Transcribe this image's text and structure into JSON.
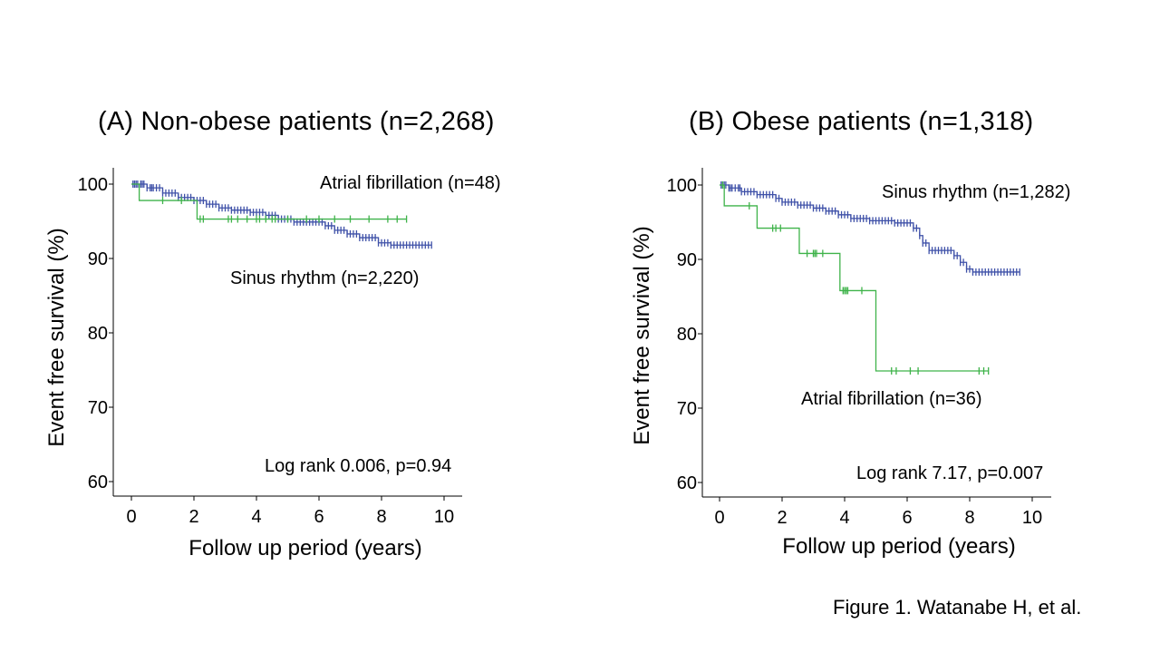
{
  "figure": {
    "caption": "Figure 1. Watanabe H, et al."
  },
  "colors": {
    "sinus_rhythm": "#3f51a8",
    "atrial_fibrillation": "#3fb34a",
    "axis": "#000000"
  },
  "chart_data": [
    {
      "type": "line",
      "title": "(A) Non-obese patients (n=2,268)",
      "xlabel": "Follow up period (years)",
      "ylabel": "Event free survival (%)",
      "xlim": [
        0,
        10
      ],
      "ylim": [
        60,
        100
      ],
      "xticks": [
        0,
        2,
        4,
        6,
        8,
        10
      ],
      "yticks": [
        60,
        70,
        80,
        90,
        100
      ],
      "annotation": "Log rank 0.006, p=0.94",
      "series": [
        {
          "name": "Sinus rhythm (n=2,220)",
          "color": "#3f51a8",
          "steps": [
            [
              0,
              100
            ],
            [
              0.5,
              99.5
            ],
            [
              1.0,
              98.8
            ],
            [
              1.5,
              98.2
            ],
            [
              2.0,
              97.8
            ],
            [
              2.4,
              97.3
            ],
            [
              2.8,
              96.8
            ],
            [
              3.2,
              96.5
            ],
            [
              3.8,
              96.2
            ],
            [
              4.3,
              95.8
            ],
            [
              4.7,
              95.3
            ],
            [
              5.2,
              94.9
            ],
            [
              6.2,
              94.4
            ],
            [
              6.5,
              93.8
            ],
            [
              6.9,
              93.3
            ],
            [
              7.3,
              92.8
            ],
            [
              7.9,
              92.1
            ],
            [
              8.3,
              91.8
            ],
            [
              9.6,
              91.8
            ]
          ],
          "censor_x": [
            0.05,
            0.1,
            0.15,
            0.2,
            0.3,
            0.35,
            0.4,
            0.5,
            0.6,
            0.65,
            0.7,
            0.8,
            0.9,
            1.0,
            1.1,
            1.2,
            1.3,
            1.4,
            1.5,
            1.6,
            1.7,
            1.8,
            1.9,
            2.0,
            2.1,
            2.2,
            2.3,
            2.4,
            2.5,
            2.6,
            2.7,
            2.8,
            2.9,
            3.0,
            3.1,
            3.2,
            3.3,
            3.4,
            3.5,
            3.6,
            3.7,
            3.8,
            3.9,
            4.0,
            4.1,
            4.2,
            4.3,
            4.4,
            4.5,
            4.6,
            4.7,
            4.8,
            4.9,
            5.0,
            5.1,
            5.2,
            5.3,
            5.4,
            5.5,
            5.6,
            5.7,
            5.8,
            5.9,
            6.0,
            6.1,
            6.2,
            6.3,
            6.4,
            6.5,
            6.6,
            6.7,
            6.8,
            6.9,
            7.0,
            7.1,
            7.2,
            7.3,
            7.4,
            7.5,
            7.6,
            7.7,
            7.8,
            7.9,
            8.0,
            8.1,
            8.2,
            8.3,
            8.4,
            8.5,
            8.6,
            8.7,
            8.8,
            8.9,
            9.0,
            9.1,
            9.2,
            9.3,
            9.4,
            9.5,
            9.6
          ]
        },
        {
          "name": "Atrial fibrillation (n=48)",
          "color": "#3fb34a",
          "steps": [
            [
              0,
              100
            ],
            [
              0.25,
              97.8
            ],
            [
              2.1,
              95.3
            ],
            [
              8.8,
              95.3
            ]
          ],
          "censor_x": [
            1.0,
            1.6,
            2.2,
            2.3,
            3.1,
            3.2,
            3.4,
            3.7,
            4.0,
            4.1,
            4.3,
            4.5,
            4.6,
            5.0,
            5.6,
            6.0,
            6.5,
            7.0,
            7.6,
            8.2,
            8.5,
            8.8
          ]
        }
      ],
      "series_labels": [
        {
          "text": "Atrial fibrillation (n=48)"
        },
        {
          "text": "Sinus rhythm (n=2,220)"
        }
      ]
    },
    {
      "type": "line",
      "title": "(B) Obese patients (n=1,318)",
      "xlabel": "Follow up period (years)",
      "ylabel": "Event free survival (%)",
      "xlim": [
        0,
        10
      ],
      "ylim": [
        60,
        100
      ],
      "xticks": [
        0,
        2,
        4,
        6,
        8,
        10
      ],
      "yticks": [
        60,
        70,
        80,
        90,
        100
      ],
      "annotation": "Log rank 7.17, p=0.007",
      "series": [
        {
          "name": "Sinus rhythm (n=1,282)",
          "color": "#3f51a8",
          "steps": [
            [
              0,
              100
            ],
            [
              0.3,
              99.6
            ],
            [
              0.7,
              99.1
            ],
            [
              1.2,
              98.7
            ],
            [
              1.8,
              98.2
            ],
            [
              2.0,
              97.7
            ],
            [
              2.5,
              97.3
            ],
            [
              3.0,
              96.9
            ],
            [
              3.4,
              96.5
            ],
            [
              3.8,
              96.0
            ],
            [
              4.2,
              95.5
            ],
            [
              4.8,
              95.2
            ],
            [
              5.6,
              94.9
            ],
            [
              6.2,
              94.2
            ],
            [
              6.4,
              93.2
            ],
            [
              6.5,
              92.2
            ],
            [
              6.7,
              91.2
            ],
            [
              7.5,
              90.5
            ],
            [
              7.7,
              89.6
            ],
            [
              7.9,
              88.7
            ],
            [
              8.1,
              88.3
            ],
            [
              9.6,
              88.3
            ]
          ],
          "censor_x": [
            0.05,
            0.1,
            0.15,
            0.2,
            0.3,
            0.35,
            0.4,
            0.5,
            0.6,
            0.65,
            0.7,
            0.8,
            0.9,
            1.0,
            1.1,
            1.2,
            1.3,
            1.4,
            1.5,
            1.6,
            1.7,
            1.8,
            1.9,
            2.0,
            2.1,
            2.2,
            2.3,
            2.4,
            2.5,
            2.6,
            2.7,
            2.8,
            2.9,
            3.0,
            3.1,
            3.2,
            3.3,
            3.4,
            3.5,
            3.6,
            3.7,
            3.8,
            3.9,
            4.0,
            4.1,
            4.2,
            4.3,
            4.4,
            4.5,
            4.6,
            4.7,
            4.8,
            4.9,
            5.0,
            5.1,
            5.2,
            5.3,
            5.4,
            5.5,
            5.6,
            5.7,
            5.8,
            5.9,
            6.0,
            6.1,
            6.2,
            6.3,
            6.4,
            6.5,
            6.6,
            6.7,
            6.8,
            6.9,
            7.0,
            7.1,
            7.2,
            7.3,
            7.4,
            7.5,
            7.6,
            7.7,
            7.8,
            7.9,
            8.0,
            8.1,
            8.2,
            8.3,
            8.4,
            8.5,
            8.6,
            8.7,
            8.8,
            8.9,
            9.0,
            9.1,
            9.2,
            9.3,
            9.4,
            9.5,
            9.6
          ]
        },
        {
          "name": "Atrial fibrillation (n=36)",
          "color": "#3fb34a",
          "steps": [
            [
              0,
              100
            ],
            [
              0.15,
              97.2
            ],
            [
              1.2,
              94.2
            ],
            [
              2.55,
              90.8
            ],
            [
              3.85,
              85.8
            ],
            [
              5.0,
              75.0
            ],
            [
              8.6,
              75.0
            ]
          ],
          "censor_x": [
            0.1,
            0.95,
            1.7,
            1.8,
            1.95,
            2.8,
            3.0,
            3.05,
            3.1,
            3.3,
            3.95,
            4.0,
            4.05,
            4.1,
            4.55,
            5.5,
            5.65,
            6.1,
            6.35,
            8.3,
            8.45,
            8.6
          ]
        }
      ],
      "series_labels": [
        {
          "text": "Sinus rhythm (n=1,282)"
        },
        {
          "text": "Atrial fibrillation (n=36)"
        }
      ]
    }
  ]
}
